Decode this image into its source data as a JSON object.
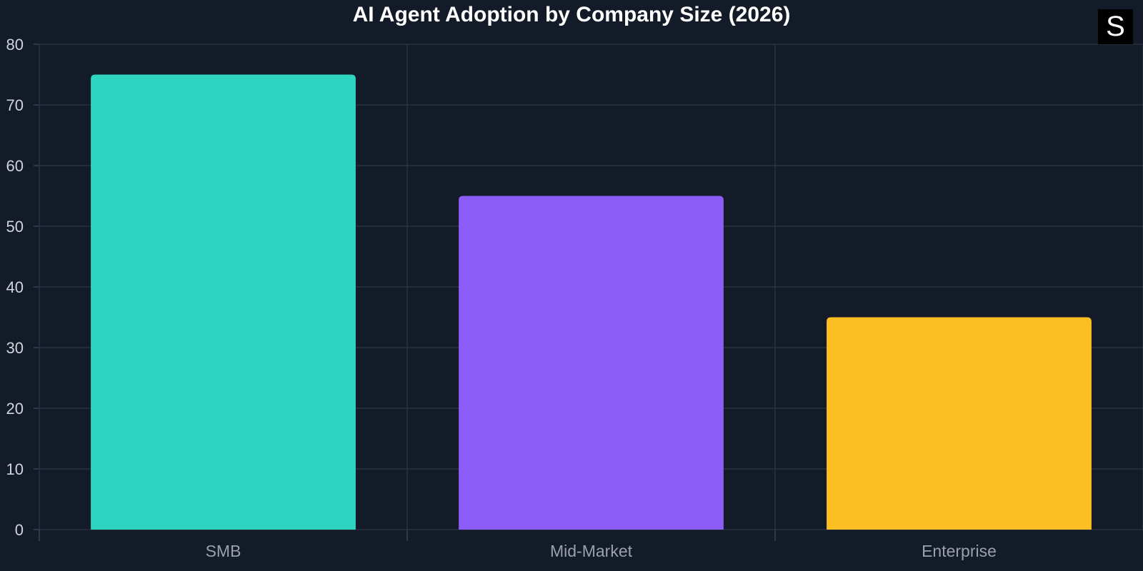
{
  "logo": {
    "text": "S"
  },
  "chart_data": {
    "type": "bar",
    "title": "AI Agent Adoption by Company Size (2026)",
    "xlabel": "",
    "ylabel": "",
    "categories": [
      "SMB",
      "Mid-Market",
      "Enterprise"
    ],
    "values": [
      75,
      55,
      35
    ],
    "colors": [
      "#2dd4bf",
      "#8b5cf6",
      "#fbbf24"
    ],
    "ylim": [
      0,
      80
    ],
    "yticks": [
      0,
      10,
      20,
      30,
      40,
      50,
      60,
      70,
      80
    ],
    "grid": true,
    "legend": "none"
  }
}
